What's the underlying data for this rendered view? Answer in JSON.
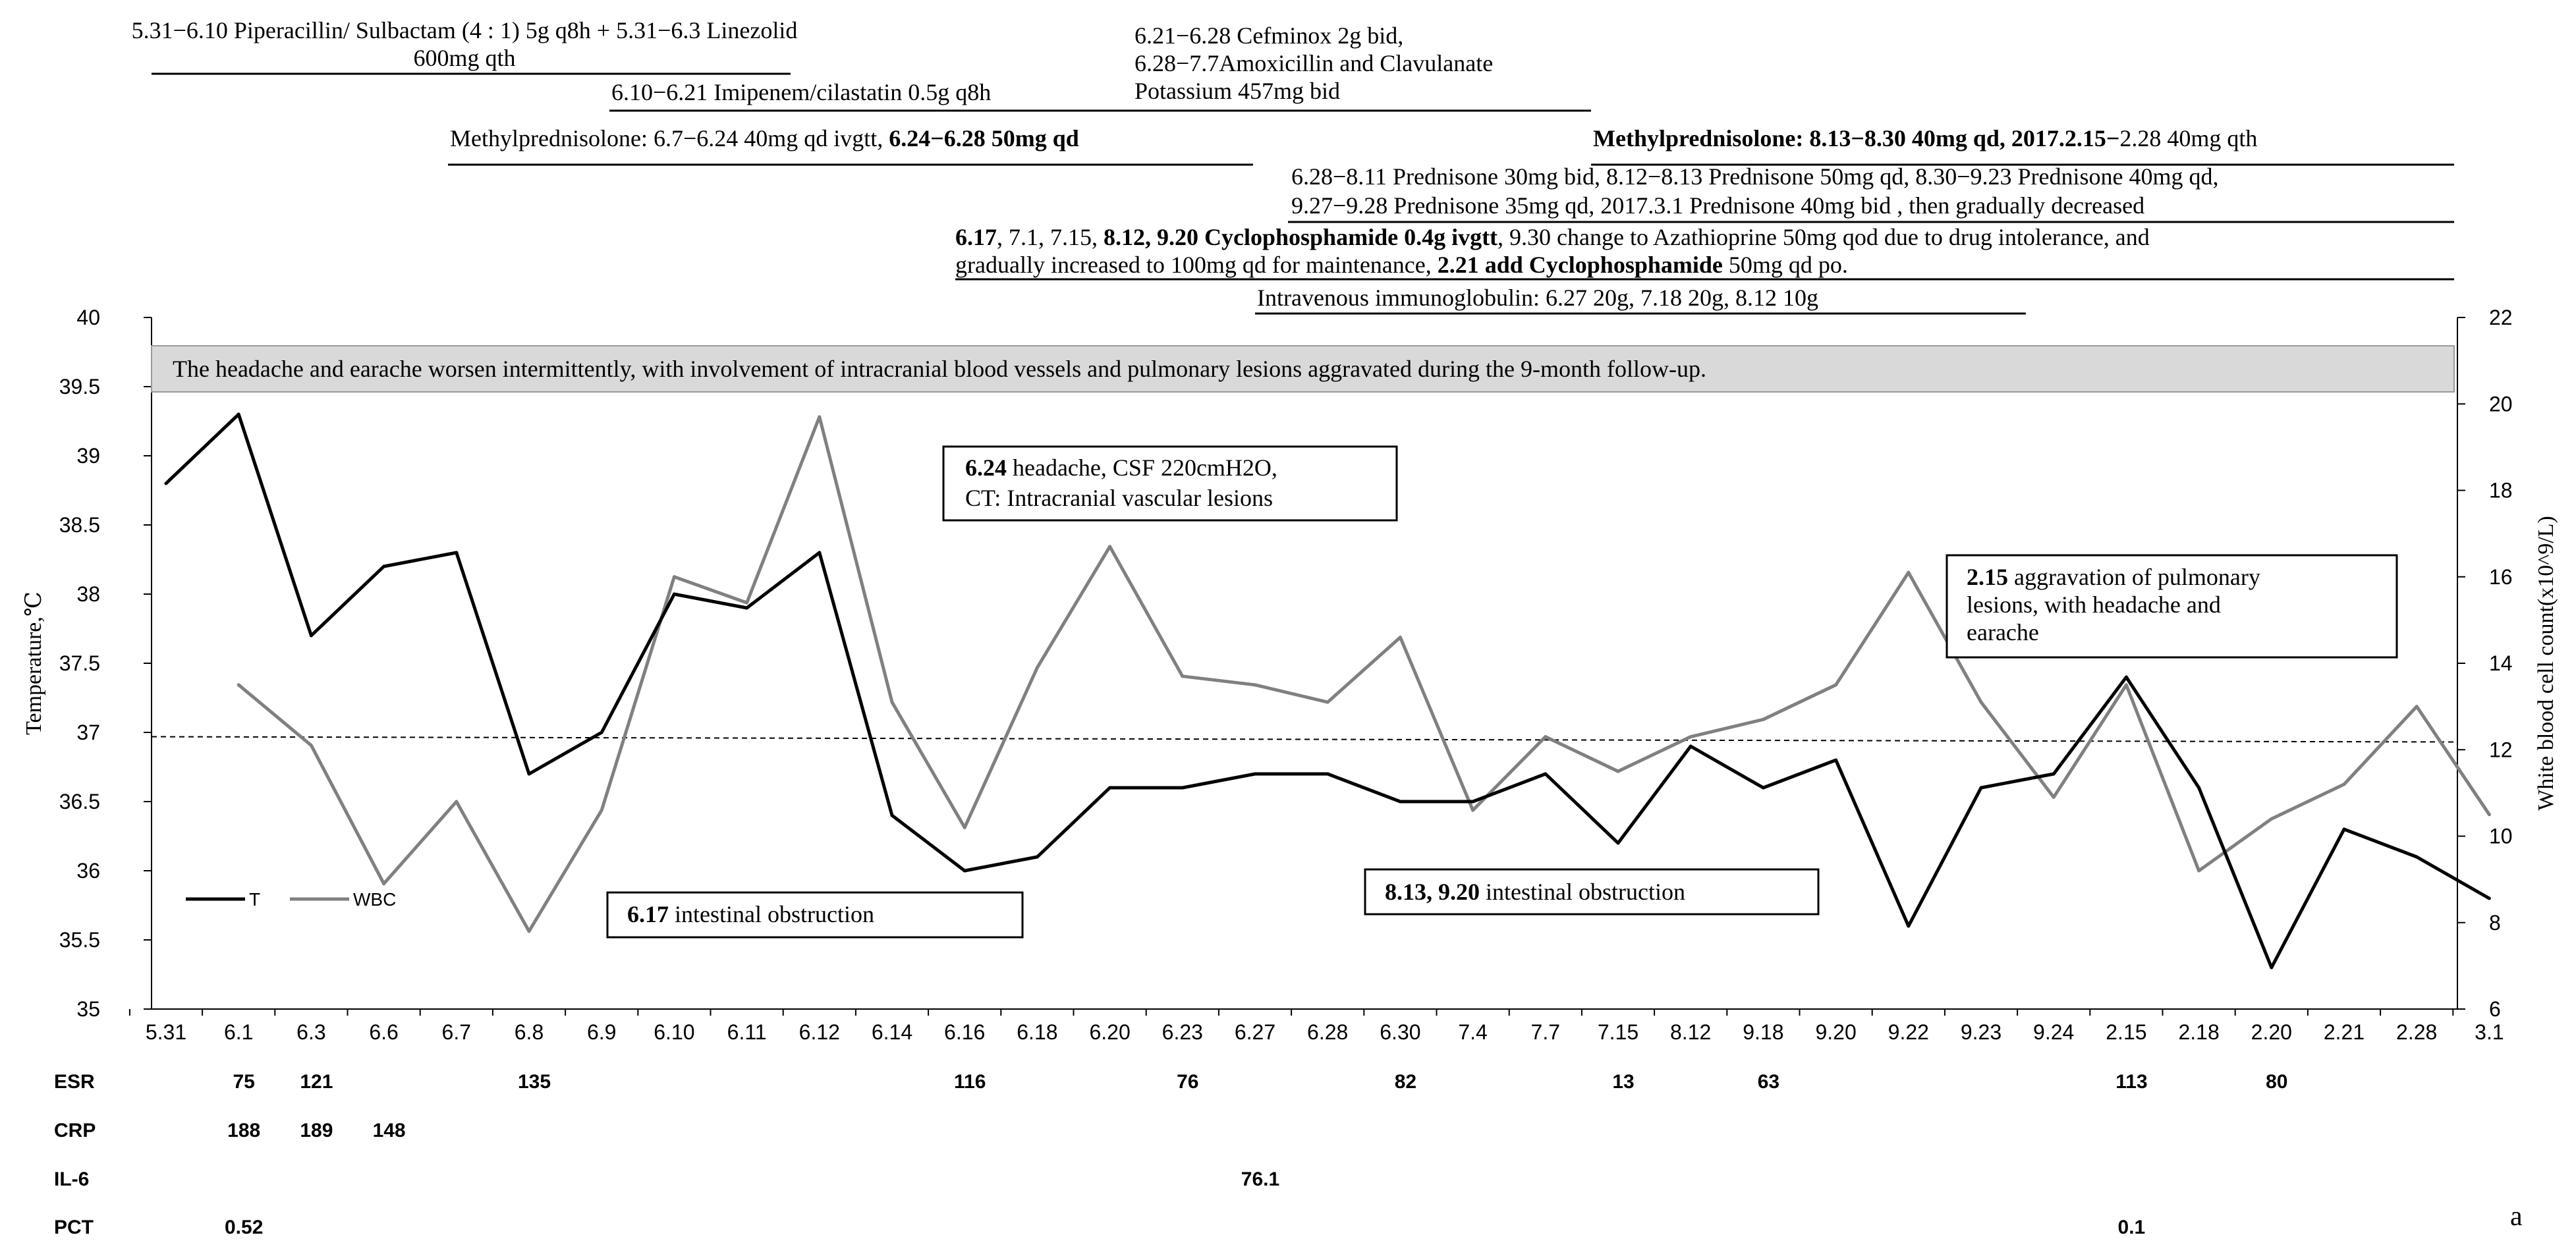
{
  "chart_data": {
    "type": "line",
    "panel_letter": "a",
    "categories": [
      "5.31",
      "6.1",
      "6.3",
      "6.6",
      "6.7",
      "6.8",
      "6.9",
      "6.10",
      "6.11",
      "6.12",
      "6.14",
      "6.16",
      "6.18",
      "6.20",
      "6.23",
      "6.27",
      "6.28",
      "6.30",
      "7.4",
      "7.7",
      "7.15",
      "8.12",
      "9.18",
      "9.20",
      "9.22",
      "9.23",
      "9.24",
      "2.15",
      "2.18",
      "2.20",
      "2.21",
      "2.28",
      "3.1"
    ],
    "y_left": {
      "label": "Temperature,℃",
      "lim": [
        35,
        40
      ],
      "ticks": [
        "35",
        "35.5",
        "36",
        "36.5",
        "37",
        "37.5",
        "38",
        "38.5",
        "39",
        "39.5",
        "40"
      ]
    },
    "y_right": {
      "label": "White blood cell count(x10^9/L)",
      "lim": [
        6,
        22
      ],
      "ticks": [
        "6",
        "8",
        "10",
        "12",
        "14",
        "16",
        "18",
        "20",
        "22"
      ]
    },
    "reference_line": 36.95,
    "series": [
      {
        "name": "T",
        "axis": "left",
        "color": "#000000",
        "values": [
          38.8,
          39.3,
          37.7,
          38.2,
          38.3,
          36.7,
          37.0,
          38.0,
          37.9,
          38.3,
          36.4,
          36.0,
          36.1,
          36.6,
          36.6,
          36.7,
          36.7,
          36.5,
          36.5,
          36.7,
          36.2,
          36.9,
          36.6,
          36.8,
          35.6,
          36.6,
          36.7,
          37.4,
          36.6,
          35.3,
          36.3,
          36.1,
          35.8
        ]
      },
      {
        "name": "WBC",
        "axis": "right",
        "color": "#808080",
        "values": [
          null,
          13.5,
          12.1,
          8.9,
          10.8,
          7.8,
          10.6,
          16.0,
          15.4,
          19.7,
          13.1,
          10.2,
          13.9,
          16.7,
          13.7,
          13.5,
          13.1,
          14.6,
          10.6,
          12.3,
          11.5,
          12.3,
          12.7,
          13.5,
          16.1,
          13.1,
          10.9,
          13.5,
          9.2,
          10.4,
          11.2,
          13.0,
          10.5
        ]
      }
    ],
    "legend": {
      "position": "bottom-left"
    }
  },
  "top_annotations": {
    "abx1": [
      "5.31−6.10 Piperacillin/ Sulbactam (4 : 1) 5g q8h + 5.31−6.3 Linezolid",
      "600mg qth"
    ],
    "abx2": "6.10−6.21 Imipenem/cilastatin 0.5g q8h",
    "abx3": [
      "6.21−6.28 Cefminox 2g bid,",
      "6.28−7.7Amoxicillin and Clavulanate",
      "Potassium 457mg bid"
    ],
    "mp1_a": "Methylprednisolone: 6.7−6.24 40mg qd ivgtt, ",
    "mp1_b": "6.24−6.28 50mg qd",
    "mp2_a": "Methylprednisolone: 8.13−8.30 40mg qd, 2017.2.15−",
    "mp2_b": "2.28 40mg qth",
    "pred": [
      "6.28−8.11 Prednisone 30mg bid, 8.12−8.13 Prednisone 50mg qd, 8.30−9.23  Prednisone 40mg qd,",
      "9.27−9.28 Prednisone 35mg qd, 2017.3.1 Prednisone 40mg bid , then gradually decreased"
    ],
    "cyc1_a": "6.17",
    "cyc1_b": ", 7.1, 7.15, ",
    "cyc1_c": "8.12, 9.20 Cyclophosphamide 0.4g ivgtt",
    "cyc1_d": ",  9.30 change to Azathioprine 50mg qod due to drug intolerance, and",
    "cyc2_a": "gradually increased to 100mg qd for maintenance, ",
    "cyc2_b": "2.21 add Cyclophosphamide",
    "cyc2_c": " 50mg qd po.",
    "ivig": "Intravenous immunoglobulin: 6.27 20g, 7.18 20g, 8.12 10g"
  },
  "banner": "The headache and earache worsen intermittently, with involvement of intracranial blood vessels and pulmonary lesions aggravated during the 9-month follow-up.",
  "callouts": {
    "c624_bold": "6.24",
    "c624_rest": " headache, CSF 220cmH2O,",
    "c624_line2": "CT: Intracranial vascular lesions",
    "c215_bold": "2.15",
    "c215_rest": " aggravation of pulmonary",
    "c215_line2": "lesions, with headache and",
    "c215_line3": "earache",
    "c617_bold": "6.17",
    "c617_rest": " intestinal obstruction",
    "c813_bold": "8.13, 9.20",
    "c813_rest": " intestinal obstruction"
  },
  "lab_table": {
    "rows": [
      {
        "name": "ESR",
        "cells": [
          [
            "6.1",
            "75"
          ],
          [
            "6.3",
            "121"
          ],
          [
            "6.8",
            "135"
          ],
          [
            "6.16",
            "116"
          ],
          [
            "6.23",
            "76"
          ],
          [
            "6.30",
            "82"
          ],
          [
            "7.15",
            "13"
          ],
          [
            "9.18",
            "63"
          ],
          [
            "2.15",
            "113"
          ],
          [
            "2.20",
            "80"
          ]
        ]
      },
      {
        "name": "CRP",
        "cells": [
          [
            "6.1",
            "188"
          ],
          [
            "6.3",
            "189"
          ],
          [
            "6.6",
            "148"
          ]
        ]
      },
      {
        "name": "IL-6",
        "cells": [
          [
            "6.27",
            "76.1"
          ]
        ]
      },
      {
        "name": "PCT",
        "cells": [
          [
            "6.1",
            "0.52"
          ],
          [
            "2.15",
            "0.1"
          ]
        ]
      }
    ]
  }
}
